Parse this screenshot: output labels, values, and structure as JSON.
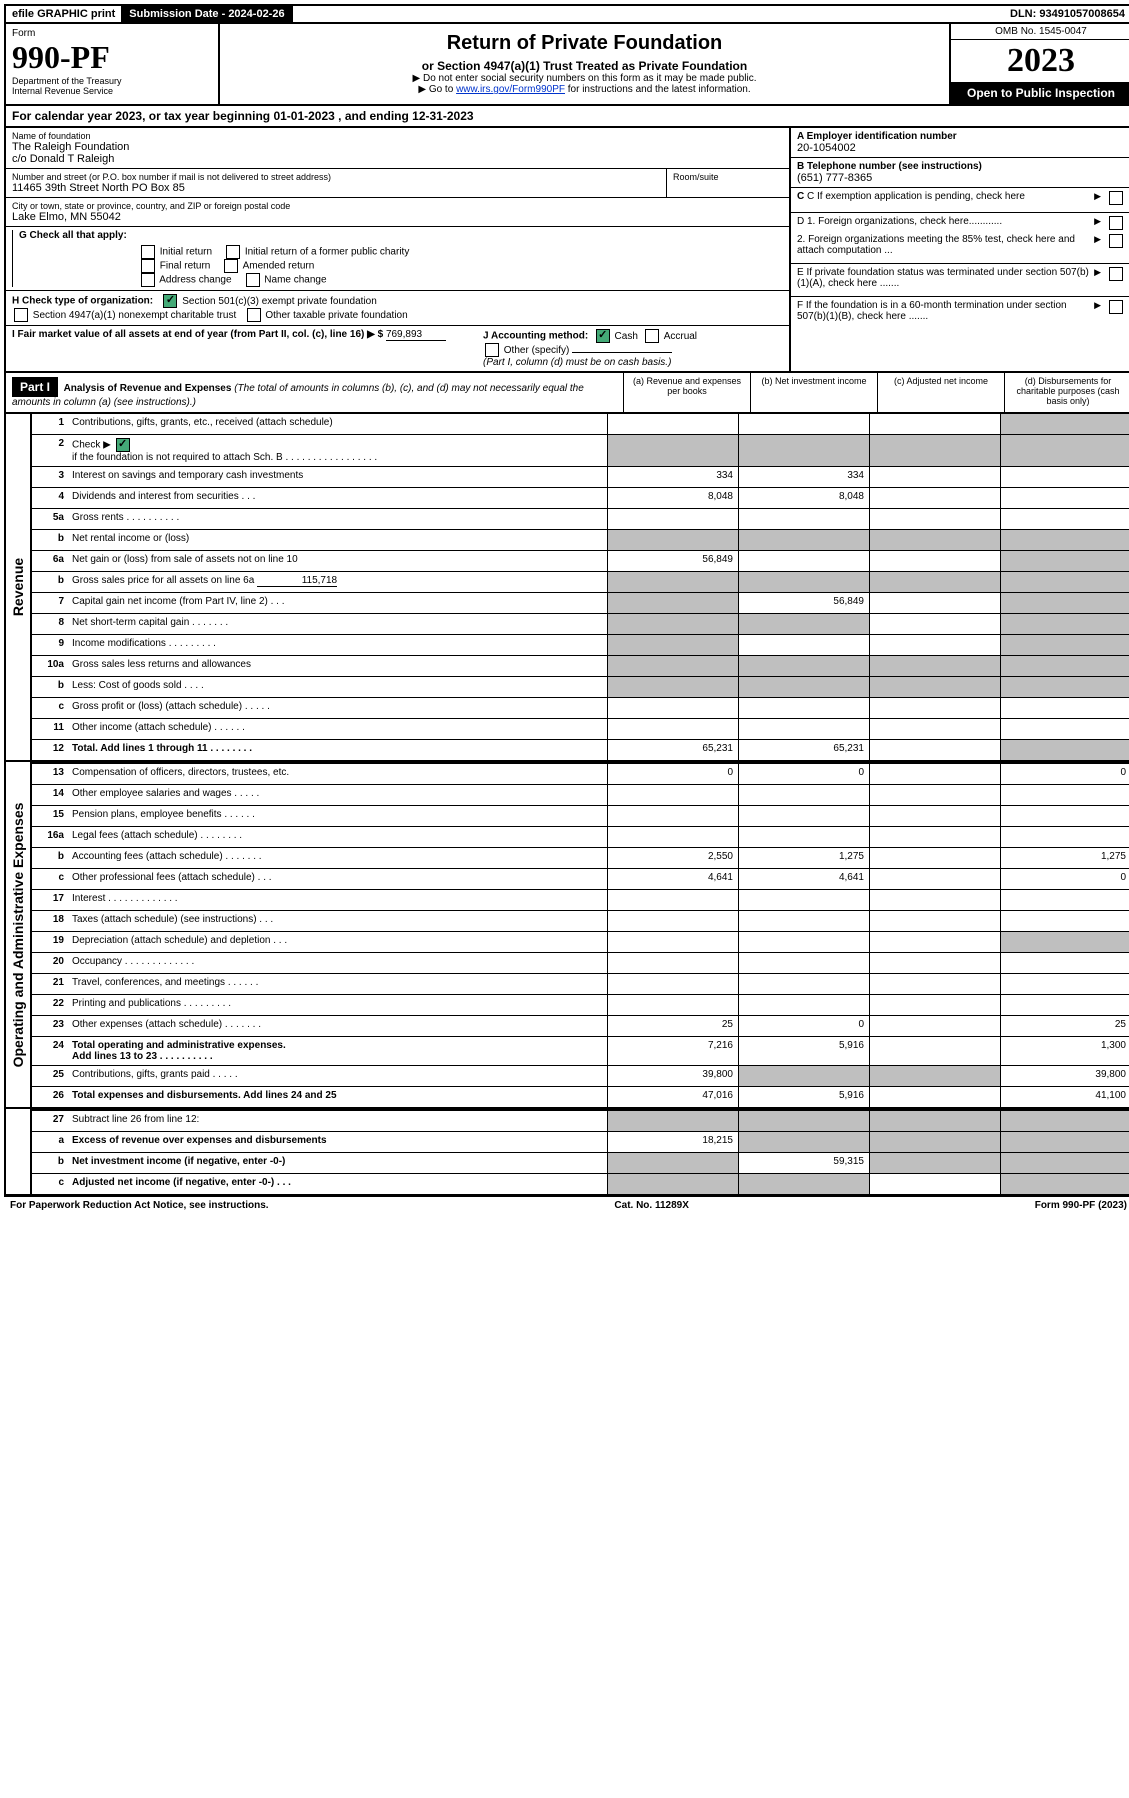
{
  "top_bar": {
    "efile": "efile GRAPHIC print",
    "sub_label": "Submission Date - 2024-02-26",
    "dln": "DLN: 93491057008654"
  },
  "header": {
    "form_label": "Form",
    "form_number": "990-PF",
    "dept": "Department of the Treasury",
    "irs": "Internal Revenue Service",
    "title": "Return of Private Foundation",
    "subtitle": "or Section 4947(a)(1) Trust Treated as Private Foundation",
    "inst1": "▶ Do not enter social security numbers on this form as it may be made public.",
    "inst2_pre": "▶ Go to ",
    "inst2_link": "www.irs.gov/Form990PF",
    "inst2_post": " for instructions and the latest information.",
    "omb": "OMB No. 1545-0047",
    "year": "2023",
    "open": "Open to Public Inspection"
  },
  "cal_year": "For calendar year 2023, or tax year beginning 01-01-2023                        , and ending 12-31-2023",
  "info": {
    "name_hint": "Name of foundation",
    "name": "The Raleigh Foundation",
    "co": "c/o Donald T Raleigh",
    "addr_hint": "Number and street (or P.O. box number if mail is not delivered to street address)",
    "addr": "11465 39th Street North PO Box 85",
    "room_hint": "Room/suite",
    "city_hint": "City or town, state or province, country, and ZIP or foreign postal code",
    "city": "Lake Elmo, MN  55042",
    "a_label": "A Employer identification number",
    "a_val": "20-1054002",
    "b_label": "B Telephone number (see instructions)",
    "b_val": "(651) 777-8365",
    "c_label": "C If exemption application is pending, check here",
    "d1_label": "D 1. Foreign organizations, check here............",
    "d2_label": "2. Foreign organizations meeting the 85% test, check here and attach computation ...",
    "e_label": "E  If private foundation status was terminated under section 507(b)(1)(A), check here .......",
    "f_label": "F  If the foundation is in a 60-month termination under section 507(b)(1)(B), check here .......",
    "g_label": "G Check all that apply:",
    "g_opts": [
      "Initial return",
      "Initial return of a former public charity",
      "Final return",
      "Amended return",
      "Address change",
      "Name change"
    ],
    "h_label": "H Check type of organization:",
    "h_opt1": "Section 501(c)(3) exempt private foundation",
    "h_opt2": "Section 4947(a)(1) nonexempt charitable trust",
    "h_opt3": "Other taxable private foundation",
    "i_label": "I Fair market value of all assets at end of year (from Part II, col. (c), line 16) ▶ $",
    "i_val": "769,893",
    "j_label": "J Accounting method:",
    "j_cash": "Cash",
    "j_accrual": "Accrual",
    "j_other": "Other (specify)",
    "j_note": "(Part I, column (d) must be on cash basis.)"
  },
  "part1": {
    "label": "Part I",
    "title": "Analysis of Revenue and Expenses",
    "note": "(The total of amounts in columns (b), (c), and (d) may not necessarily equal the amounts in column (a) (see instructions).)",
    "cols": {
      "a": "(a)    Revenue and expenses per books",
      "b": "(b)    Net investment income",
      "c": "(c)    Adjusted net income",
      "d": "(d)    Disbursements for charitable purposes (cash basis only)"
    }
  },
  "rev_label": "Revenue",
  "oae_label": "Operating and Administrative Expenses",
  "lines": {
    "1": {
      "n": "1",
      "t": "Contributions, gifts, grants, etc., received (attach schedule)"
    },
    "2": {
      "n": "2",
      "t": "Check ▶",
      "t2": " if the foundation is not required to attach Sch. B   .  .  .  .  .  .  .  .  .  .  .  .  .  .  .  .  ."
    },
    "3": {
      "n": "3",
      "t": "Interest on savings and temporary cash investments",
      "a": "334",
      "b": "334"
    },
    "4": {
      "n": "4",
      "t": "Dividends and interest from securities    .    .    .",
      "a": "8,048",
      "b": "8,048"
    },
    "5a": {
      "n": "5a",
      "t": "Gross rents    .    .    .    .    .    .    .    .    .    ."
    },
    "5b": {
      "n": "b",
      "t": "Net rental income or (loss)"
    },
    "6a": {
      "n": "6a",
      "t": "Net gain or (loss) from sale of assets not on line 10",
      "a": "56,849"
    },
    "6b": {
      "n": "b",
      "t": "Gross sales price for all assets on line 6a",
      "v": "115,718"
    },
    "7": {
      "n": "7",
      "t": "Capital gain net income (from Part IV, line 2)    .    .    .",
      "b": "56,849"
    },
    "8": {
      "n": "8",
      "t": "Net short-term capital gain  .    .    .    .    .    .    ."
    },
    "9": {
      "n": "9",
      "t": "Income modifications .    .    .    .    .    .    .    .    ."
    },
    "10a": {
      "n": "10a",
      "t": "Gross sales less returns and allowances"
    },
    "10b": {
      "n": "b",
      "t": "Less: Cost of goods sold     .    .    .    ."
    },
    "10c": {
      "n": "c",
      "t": "Gross profit or (loss) (attach schedule)    .    .    .    .    ."
    },
    "11": {
      "n": "11",
      "t": "Other income (attach schedule)    .    .    .    .    .    ."
    },
    "12": {
      "n": "12",
      "t": "Total. Add lines 1 through 11  .    .    .    .    .    .    .    .",
      "a": "65,231",
      "b": "65,231",
      "bold": true
    },
    "13": {
      "n": "13",
      "t": "Compensation of officers, directors, trustees, etc.",
      "a": "0",
      "b": "0",
      "d": "0"
    },
    "14": {
      "n": "14",
      "t": "Other employee salaries and wages    .    .    .    .    ."
    },
    "15": {
      "n": "15",
      "t": "Pension plans, employee benefits  .    .    .    .    .    ."
    },
    "16a": {
      "n": "16a",
      "t": "Legal fees (attach schedule) .    .    .    .    .    .    .    ."
    },
    "16b": {
      "n": "b",
      "t": "Accounting fees (attach schedule) .    .    .    .    .    .    .",
      "a": "2,550",
      "b": "1,275",
      "d": "1,275"
    },
    "16c": {
      "n": "c",
      "t": "Other professional fees (attach schedule)    .    .    .",
      "a": "4,641",
      "b": "4,641",
      "d": "0"
    },
    "17": {
      "n": "17",
      "t": "Interest  .    .    .    .    .    .    .    .    .    .    .    .    ."
    },
    "18": {
      "n": "18",
      "t": "Taxes (attach schedule) (see instructions)    .    .    ."
    },
    "19": {
      "n": "19",
      "t": "Depreciation (attach schedule) and depletion    .    .    ."
    },
    "20": {
      "n": "20",
      "t": "Occupancy .    .    .    .    .    .    .    .    .    .    .    .    ."
    },
    "21": {
      "n": "21",
      "t": "Travel, conferences, and meetings .    .    .    .    .    ."
    },
    "22": {
      "n": "22",
      "t": "Printing and publications .    .    .    .    .    .    .    .    ."
    },
    "23": {
      "n": "23",
      "t": "Other expenses (attach schedule) .    .    .    .    .    .    .",
      "a": "25",
      "b": "0",
      "d": "25"
    },
    "24": {
      "n": "24",
      "t": "Total operating and administrative expenses.",
      "t2": "Add lines 13 to 23  .    .    .    .    .    .    .    .    .    .",
      "a": "7,216",
      "b": "5,916",
      "d": "1,300",
      "bold": true
    },
    "25": {
      "n": "25",
      "t": "Contributions, gifts, grants paid     .    .    .    .    .",
      "a": "39,800",
      "d": "39,800"
    },
    "26": {
      "n": "26",
      "t": "Total expenses and disbursements. Add lines 24 and 25",
      "a": "47,016",
      "b": "5,916",
      "d": "41,100",
      "bold": true
    },
    "27": {
      "n": "27",
      "t": "Subtract line 26 from line 12:"
    },
    "27a": {
      "n": "a",
      "t": "Excess of revenue over expenses and disbursements",
      "a": "18,215",
      "bold": true
    },
    "27b": {
      "n": "b",
      "t": "Net investment income (if negative, enter -0-)",
      "b": "59,315",
      "bold": true
    },
    "27c": {
      "n": "c",
      "t": "Adjusted net income (if negative, enter -0-)    .    .    .",
      "bold": true
    }
  },
  "footer": {
    "left": "For Paperwork Reduction Act Notice, see instructions.",
    "mid": "Cat. No. 11289X",
    "right": "Form 990-PF (2023)"
  },
  "colors": {
    "grey": "#bfbfbf",
    "link": "#0033cc",
    "check": "#4a7"
  }
}
